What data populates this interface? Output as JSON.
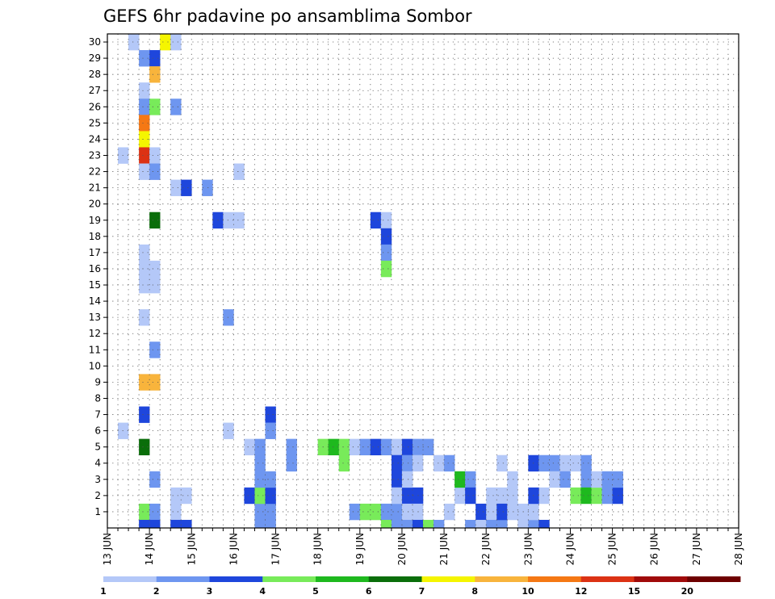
{
  "chart_data": {
    "type": "heatmap",
    "title": "GEFS 6hr padavine po ansamblima Sombor",
    "x_tick_labels": [
      "13 JUN",
      "14 JUN",
      "15 JUN",
      "16 JUN",
      "17 JUN",
      "18 JUN",
      "19 JUN",
      "20 JUN",
      "21 JUN",
      "22 JUN",
      "23 JUN",
      "24 JUN",
      "25 JUN",
      "26 JUN",
      "27 JUN",
      "28 JUN"
    ],
    "y_tick_labels": [
      "1",
      "2",
      "3",
      "4",
      "5",
      "6",
      "7",
      "8",
      "9",
      "10",
      "11",
      "12",
      "13",
      "14",
      "15",
      "16",
      "17",
      "18",
      "19",
      "20",
      "21",
      "22",
      "23",
      "24",
      "25",
      "26",
      "27",
      "28",
      "29",
      "30"
    ],
    "x_range": [
      "13 JUN 00z",
      "28 JUN 00z"
    ],
    "x_step_hours": 6,
    "y_range": [
      0,
      30
    ],
    "grid": true,
    "colorbar": {
      "bounds": [
        "1",
        "2",
        "3",
        "4",
        "5",
        "6",
        "7",
        "8",
        "10",
        "12",
        "15",
        "20"
      ],
      "colors": [
        "#b4c8f8",
        "#6e96f0",
        "#1e46dc",
        "#78eb5a",
        "#1eb91e",
        "#0a6e0a",
        "#f5f500",
        "#f8b43c",
        "#f57814",
        "#dc3214",
        "#a00a0a",
        "#6e0000"
      ]
    },
    "cells": [
      [
        2,
        30,
        0
      ],
      [
        5,
        30,
        6
      ],
      [
        6,
        30,
        0
      ],
      [
        3,
        29,
        1
      ],
      [
        4,
        29,
        2
      ],
      [
        4,
        28,
        7
      ],
      [
        3,
        27,
        0
      ],
      [
        3,
        26,
        1
      ],
      [
        4,
        26,
        3
      ],
      [
        6,
        26,
        1
      ],
      [
        3,
        25,
        8
      ],
      [
        3,
        24,
        6
      ],
      [
        3,
        23,
        9
      ],
      [
        4,
        23,
        0
      ],
      [
        1,
        23,
        0
      ],
      [
        3,
        22,
        0
      ],
      [
        4,
        22,
        1
      ],
      [
        6,
        21,
        0
      ],
      [
        4,
        19,
        5
      ],
      [
        3,
        17,
        0
      ],
      [
        3,
        16,
        0
      ],
      [
        4,
        16,
        0
      ],
      [
        3,
        15,
        0
      ],
      [
        4,
        15,
        0
      ],
      [
        3,
        13,
        0
      ],
      [
        4,
        11,
        1
      ],
      [
        3,
        9,
        7
      ],
      [
        4,
        9,
        7
      ],
      [
        3,
        7,
        2
      ],
      [
        1,
        6,
        0
      ],
      [
        3,
        5,
        5
      ],
      [
        4,
        3,
        1
      ],
      [
        3,
        1,
        3
      ],
      [
        4,
        1,
        1
      ],
      [
        3,
        0,
        2
      ],
      [
        4,
        0,
        2
      ],
      [
        6,
        1,
        0
      ],
      [
        6,
        0,
        2
      ],
      [
        6,
        2,
        0
      ],
      [
        7,
        2,
        0
      ],
      [
        7,
        0,
        2
      ],
      [
        12,
        22,
        0
      ],
      [
        7,
        21,
        2
      ],
      [
        9,
        21,
        1
      ],
      [
        10,
        19,
        2
      ],
      [
        11,
        19,
        0
      ],
      [
        12,
        19,
        0
      ],
      [
        11,
        13,
        1
      ],
      [
        11,
        6,
        0
      ],
      [
        14,
        1,
        1
      ],
      [
        15,
        1,
        1
      ],
      [
        15,
        7,
        2
      ],
      [
        13,
        2,
        2
      ],
      [
        14,
        2,
        3
      ],
      [
        15,
        2,
        2
      ],
      [
        13,
        5,
        0
      ],
      [
        14,
        5,
        1
      ],
      [
        14,
        4,
        1
      ],
      [
        14,
        3,
        1
      ],
      [
        15,
        3,
        1
      ],
      [
        15,
        0,
        1
      ],
      [
        14,
        0,
        1
      ],
      [
        15,
        6,
        1
      ],
      [
        17,
        5,
        1
      ],
      [
        17,
        4,
        1
      ],
      [
        20,
        5,
        3
      ],
      [
        21,
        5,
        4
      ],
      [
        22,
        5,
        3
      ],
      [
        22,
        4,
        3
      ],
      [
        23,
        5,
        0
      ],
      [
        24,
        5,
        1
      ],
      [
        25,
        5,
        2
      ],
      [
        26,
        5,
        1
      ],
      [
        27,
        5,
        0
      ],
      [
        27,
        4,
        2
      ],
      [
        28,
        5,
        2
      ],
      [
        29,
        5,
        1
      ],
      [
        30,
        5,
        1
      ],
      [
        27,
        3,
        2
      ],
      [
        28,
        3,
        1
      ],
      [
        28,
        2,
        0
      ],
      [
        27,
        2,
        0
      ],
      [
        25,
        19,
        2
      ],
      [
        26,
        19,
        0
      ],
      [
        26,
        18,
        2
      ],
      [
        26,
        17,
        1
      ],
      [
        26,
        16,
        3
      ],
      [
        23,
        1,
        1
      ],
      [
        24,
        1,
        3
      ],
      [
        25,
        1,
        3
      ],
      [
        26,
        1,
        1
      ],
      [
        26,
        0,
        3
      ],
      [
        27,
        0,
        1
      ],
      [
        27,
        1,
        1
      ],
      [
        27,
        2,
        0
      ],
      [
        28,
        2,
        2
      ],
      [
        29,
        2,
        2
      ],
      [
        28,
        4,
        1
      ],
      [
        28,
        3,
        0
      ],
      [
        29,
        4,
        0
      ],
      [
        28,
        1,
        0
      ],
      [
        29,
        1,
        0
      ],
      [
        28,
        0,
        1
      ],
      [
        29,
        0,
        2
      ],
      [
        30,
        0,
        3
      ],
      [
        31,
        0,
        1
      ],
      [
        31,
        4,
        0
      ],
      [
        32,
        4,
        1
      ],
      [
        32,
        1,
        0
      ],
      [
        33,
        2,
        0
      ],
      [
        33,
        3,
        4
      ],
      [
        34,
        3,
        1
      ],
      [
        34,
        2,
        2
      ],
      [
        34,
        0,
        1
      ],
      [
        35,
        1,
        2
      ],
      [
        35,
        0,
        0
      ],
      [
        36,
        1,
        0
      ],
      [
        36,
        2,
        0
      ],
      [
        36,
        0,
        1
      ],
      [
        37,
        0,
        1
      ],
      [
        37,
        2,
        0
      ],
      [
        37,
        4,
        0
      ],
      [
        38,
        2,
        0
      ],
      [
        38,
        3,
        0
      ],
      [
        37,
        1,
        2
      ],
      [
        38,
        1,
        0
      ],
      [
        39,
        1,
        0
      ],
      [
        39,
        0,
        0
      ],
      [
        40,
        0,
        1
      ],
      [
        41,
        0,
        2
      ],
      [
        40,
        1,
        0
      ],
      [
        41,
        2,
        0
      ],
      [
        40,
        2,
        2
      ],
      [
        40,
        4,
        2
      ],
      [
        41,
        4,
        1
      ],
      [
        42,
        4,
        1
      ],
      [
        43,
        4,
        0
      ],
      [
        42,
        3,
        0
      ],
      [
        43,
        3,
        1
      ],
      [
        44,
        4,
        0
      ],
      [
        45,
        4,
        1
      ],
      [
        45,
        3,
        1
      ],
      [
        44,
        2,
        3
      ],
      [
        45,
        2,
        4
      ],
      [
        46,
        2,
        3
      ],
      [
        46,
        3,
        0
      ],
      [
        47,
        3,
        1
      ],
      [
        47,
        2,
        1
      ],
      [
        48,
        2,
        2
      ],
      [
        48,
        3,
        1
      ]
    ]
  }
}
